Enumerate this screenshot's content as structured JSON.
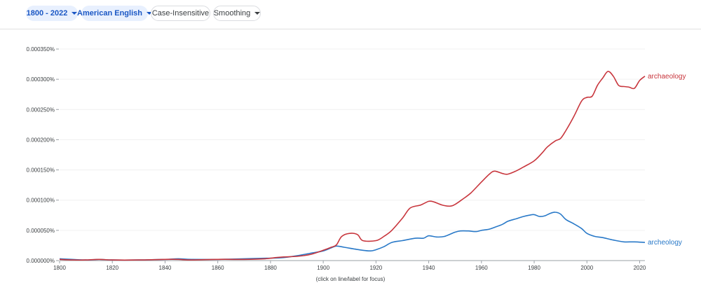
{
  "toolbar": {
    "year_range": "1800 - 2022",
    "corpus": "American English",
    "case_label": "Case-Insensitive",
    "smoothing_label": "Smoothing"
  },
  "footnote": "(click on line/label for focus)",
  "chart_data": {
    "type": "line",
    "title": "",
    "xlabel": "",
    "ylabel": "",
    "xlim": [
      1800,
      2022
    ],
    "ylim": [
      0,
      0.00035
    ],
    "x_ticks": [
      1800,
      1820,
      1840,
      1860,
      1880,
      1900,
      1920,
      1940,
      1960,
      1980,
      2000,
      2020
    ],
    "x_tick_labels": [
      "1800",
      "1820",
      "1840",
      "1860",
      "1880",
      "1900",
      "1920",
      "1940",
      "1960",
      "1980",
      "2000",
      "2020"
    ],
    "y_ticks": [
      0,
      5e-05,
      0.0001,
      0.00015,
      0.0002,
      0.00025,
      0.0003,
      0.00035
    ],
    "y_tick_labels": [
      "0.000000%",
      "0.000050%",
      "0.000100%",
      "0.000150%",
      "0.000200%",
      "0.000250%",
      "0.000300%",
      "0.000350%"
    ],
    "grid": true,
    "series": [
      {
        "name": "archaeology",
        "color": "#c8363d",
        "points": [
          [
            1800,
            2e-06
          ],
          [
            1805,
            1e-06
          ],
          [
            1810,
            1e-06
          ],
          [
            1815,
            2e-06
          ],
          [
            1820,
            1e-06
          ],
          [
            1830,
            1e-06
          ],
          [
            1840,
            2e-06
          ],
          [
            1845,
            2e-06
          ],
          [
            1850,
            1e-06
          ],
          [
            1860,
            2e-06
          ],
          [
            1870,
            2e-06
          ],
          [
            1878,
            3e-06
          ],
          [
            1882,
            5e-06
          ],
          [
            1885,
            6e-06
          ],
          [
            1890,
            7e-06
          ],
          [
            1895,
            1e-05
          ],
          [
            1900,
            1.7e-05
          ],
          [
            1903,
            2.2e-05
          ],
          [
            1905,
            2.6e-05
          ],
          [
            1907,
            4e-05
          ],
          [
            1910,
            4.5e-05
          ],
          [
            1913,
            4.3e-05
          ],
          [
            1915,
            3.3e-05
          ],
          [
            1920,
            3.3e-05
          ],
          [
            1923,
            4e-05
          ],
          [
            1926,
            5e-05
          ],
          [
            1930,
            7e-05
          ],
          [
            1933,
            8.7e-05
          ],
          [
            1937,
            9.2e-05
          ],
          [
            1940,
            9.8e-05
          ],
          [
            1942,
            9.7e-05
          ],
          [
            1945,
            9.2e-05
          ],
          [
            1948,
            9e-05
          ],
          [
            1950,
            9.3e-05
          ],
          [
            1953,
            0.000102
          ],
          [
            1956,
            0.000112
          ],
          [
            1960,
            0.00013
          ],
          [
            1963,
            0.000143
          ],
          [
            1965,
            0.000148
          ],
          [
            1968,
            0.000144
          ],
          [
            1970,
            0.000143
          ],
          [
            1973,
            0.000148
          ],
          [
            1976,
            0.000155
          ],
          [
            1980,
            0.000165
          ],
          [
            1983,
            0.000178
          ],
          [
            1985,
            0.000188
          ],
          [
            1988,
            0.000198
          ],
          [
            1990,
            0.000202
          ],
          [
            1992,
            0.000215
          ],
          [
            1995,
            0.000238
          ],
          [
            1998,
            0.000264
          ],
          [
            2000,
            0.00027
          ],
          [
            2002,
            0.000272
          ],
          [
            2004,
            0.00029
          ],
          [
            2006,
            0.000302
          ],
          [
            2008,
            0.000313
          ],
          [
            2010,
            0.000305
          ],
          [
            2012,
            0.00029
          ],
          [
            2014,
            0.000288
          ],
          [
            2016,
            0.000287
          ],
          [
            2018,
            0.000285
          ],
          [
            2020,
            0.000298
          ],
          [
            2022,
            0.000305
          ]
        ]
      },
      {
        "name": "archeology",
        "color": "#2979c8",
        "points": [
          [
            1800,
            3e-06
          ],
          [
            1810,
            1e-06
          ],
          [
            1815,
            2e-06
          ],
          [
            1820,
            1e-06
          ],
          [
            1830,
            1e-06
          ],
          [
            1840,
            2e-06
          ],
          [
            1845,
            3e-06
          ],
          [
            1850,
            2e-06
          ],
          [
            1860,
            2e-06
          ],
          [
            1870,
            3e-06
          ],
          [
            1880,
            4e-06
          ],
          [
            1885,
            5e-06
          ],
          [
            1890,
            8e-06
          ],
          [
            1895,
            1.2e-05
          ],
          [
            1900,
            1.6e-05
          ],
          [
            1903,
            2.1e-05
          ],
          [
            1905,
            2.4e-05
          ],
          [
            1908,
            2.2e-05
          ],
          [
            1912,
            1.9e-05
          ],
          [
            1915,
            1.7e-05
          ],
          [
            1918,
            1.6e-05
          ],
          [
            1920,
            1.8e-05
          ],
          [
            1923,
            2.3e-05
          ],
          [
            1926,
            3e-05
          ],
          [
            1930,
            3.3e-05
          ],
          [
            1935,
            3.7e-05
          ],
          [
            1938,
            3.7e-05
          ],
          [
            1940,
            4.1e-05
          ],
          [
            1943,
            3.9e-05
          ],
          [
            1946,
            4e-05
          ],
          [
            1950,
            4.7e-05
          ],
          [
            1952,
            4.9e-05
          ],
          [
            1955,
            4.9e-05
          ],
          [
            1958,
            4.8e-05
          ],
          [
            1960,
            5e-05
          ],
          [
            1963,
            5.2e-05
          ],
          [
            1965,
            5.5e-05
          ],
          [
            1968,
            6e-05
          ],
          [
            1970,
            6.5e-05
          ],
          [
            1973,
            6.9e-05
          ],
          [
            1976,
            7.3e-05
          ],
          [
            1978,
            7.5e-05
          ],
          [
            1980,
            7.6e-05
          ],
          [
            1982,
            7.3e-05
          ],
          [
            1984,
            7.4e-05
          ],
          [
            1986,
            7.8e-05
          ],
          [
            1988,
            8e-05
          ],
          [
            1990,
            7.7e-05
          ],
          [
            1992,
            6.8e-05
          ],
          [
            1995,
            6.1e-05
          ],
          [
            1998,
            5.3e-05
          ],
          [
            2000,
            4.5e-05
          ],
          [
            2003,
            4e-05
          ],
          [
            2006,
            3.8e-05
          ],
          [
            2010,
            3.4e-05
          ],
          [
            2014,
            3.1e-05
          ],
          [
            2018,
            3.1e-05
          ],
          [
            2022,
            3e-05
          ]
        ]
      }
    ]
  }
}
